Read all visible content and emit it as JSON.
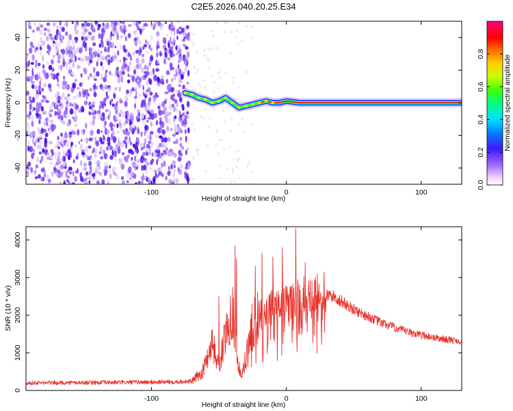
{
  "title": "C2E5.2026.040.20.25.E34",
  "chart_data": [
    {
      "type": "heatmap",
      "xlabel": "Height of straight line (km)",
      "ylabel": "Frequency (Hz)",
      "xlim": [
        -193,
        130
      ],
      "ylim": [
        -50,
        50
      ],
      "xticks": [
        -100,
        0,
        100
      ],
      "yticks": [
        -40,
        -20,
        0,
        20,
        40
      ],
      "noise_region_x": [
        -193,
        -72
      ],
      "signal_track": [
        {
          "x": -75,
          "y": 6
        },
        {
          "x": -70,
          "y": 5
        },
        {
          "x": -65,
          "y": 3
        },
        {
          "x": -60,
          "y": 2
        },
        {
          "x": -55,
          "y": 0
        },
        {
          "x": -50,
          "y": 1
        },
        {
          "x": -45,
          "y": 3
        },
        {
          "x": -40,
          "y": 0
        },
        {
          "x": -35,
          "y": -3
        },
        {
          "x": -30,
          "y": -2
        },
        {
          "x": -25,
          "y": -1
        },
        {
          "x": -20,
          "y": 0
        },
        {
          "x": -15,
          "y": 1
        },
        {
          "x": -10,
          "y": 0
        },
        {
          "x": -5,
          "y": 0
        },
        {
          "x": 0,
          "y": 1
        },
        {
          "x": 10,
          "y": 0
        },
        {
          "x": 130,
          "y": 0
        }
      ],
      "colorbar": {
        "label": "Normalized spectral amplitude",
        "range": [
          0.0,
          1.0
        ],
        "ticks": [
          "0.0",
          "0.2",
          "0.4",
          "0.6",
          "0.8"
        ]
      }
    },
    {
      "type": "line",
      "xlabel": "Height of straight line (km)",
      "ylabel": "SNR (10 * v/v)",
      "xlim": [
        -193,
        130
      ],
      "ylim": [
        0,
        4350
      ],
      "xticks": [
        -100,
        0,
        100
      ],
      "yticks": [
        0,
        1000,
        2000,
        3000,
        4000
      ],
      "series_color": "#e8302a",
      "envelope": [
        {
          "x": -193,
          "y": 200
        },
        {
          "x": -140,
          "y": 210
        },
        {
          "x": -100,
          "y": 220
        },
        {
          "x": -70,
          "y": 240
        },
        {
          "x": -62,
          "y": 500
        },
        {
          "x": -55,
          "y": 1300
        },
        {
          "x": -50,
          "y": 600
        },
        {
          "x": -45,
          "y": 1500
        },
        {
          "x": -40,
          "y": 2200
        },
        {
          "x": -36,
          "y": 700
        },
        {
          "x": -33,
          "y": 350
        },
        {
          "x": -30,
          "y": 900
        },
        {
          "x": -25,
          "y": 1800
        },
        {
          "x": -20,
          "y": 2000
        },
        {
          "x": -10,
          "y": 2200
        },
        {
          "x": 0,
          "y": 2300
        },
        {
          "x": 10,
          "y": 2450
        },
        {
          "x": 20,
          "y": 2600
        },
        {
          "x": 35,
          "y": 2500
        },
        {
          "x": 50,
          "y": 2150
        },
        {
          "x": 70,
          "y": 1800
        },
        {
          "x": 90,
          "y": 1550
        },
        {
          "x": 110,
          "y": 1400
        },
        {
          "x": 130,
          "y": 1300
        }
      ],
      "peaks": [
        {
          "x": -50,
          "y": 2500
        },
        {
          "x": -38,
          "y": 3850
        },
        {
          "x": -37,
          "y": 3500
        },
        {
          "x": -23,
          "y": 3300
        },
        {
          "x": -18,
          "y": 3650
        },
        {
          "x": -10,
          "y": 3550
        },
        {
          "x": -3,
          "y": 3800
        },
        {
          "x": 7,
          "y": 4300
        },
        {
          "x": 14,
          "y": 3400
        },
        {
          "x": 28,
          "y": 3150
        }
      ]
    }
  ]
}
